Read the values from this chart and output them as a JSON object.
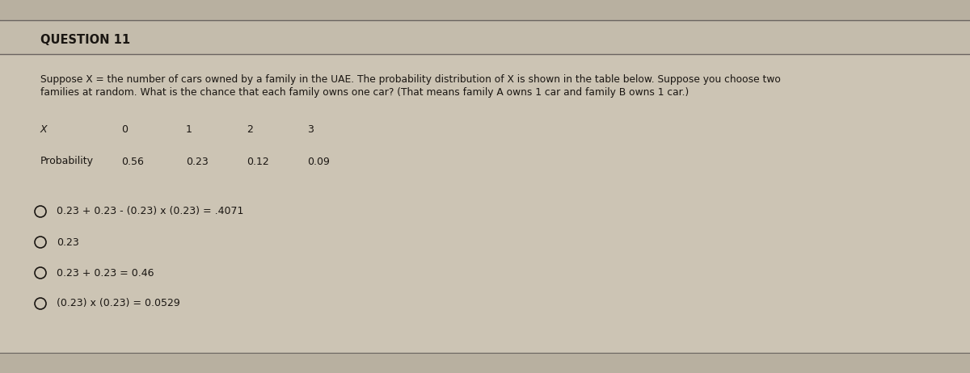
{
  "title": "QUESTION 11",
  "description_line1": "Suppose X = the number of cars owned by a family in the UAE. The probability distribution of X is shown in the table below. Suppose you choose two",
  "description_line2": "families at random. What is the chance that each family owns one car? (That means family A owns 1 car and family B owns 1 car.)",
  "table_headers": [
    "X",
    "0",
    "1",
    "2",
    "3"
  ],
  "table_row_label": "Probability",
  "table_values": [
    "0.56",
    "0.23",
    "0.12",
    "0.09"
  ],
  "options": [
    "0.23 + 0.23 - (0.23) x (0.23) = .4071",
    "0.23",
    "0.23 + 0.23 = 0.46",
    "(0.23) x (0.23) = 0.0529"
  ],
  "bg_color": "#c8c0b0",
  "top_strip_color": "#b8b0a0",
  "title_bg_color": "#c4bcac",
  "main_bg_color": "#ccc4b4",
  "line_color": "#6a6460",
  "text_color": "#1a1612",
  "title_color": "#1a1612",
  "font_size_title": 10.5,
  "font_size_body": 8.8,
  "font_size_table": 9.0,
  "font_size_options": 9.0
}
